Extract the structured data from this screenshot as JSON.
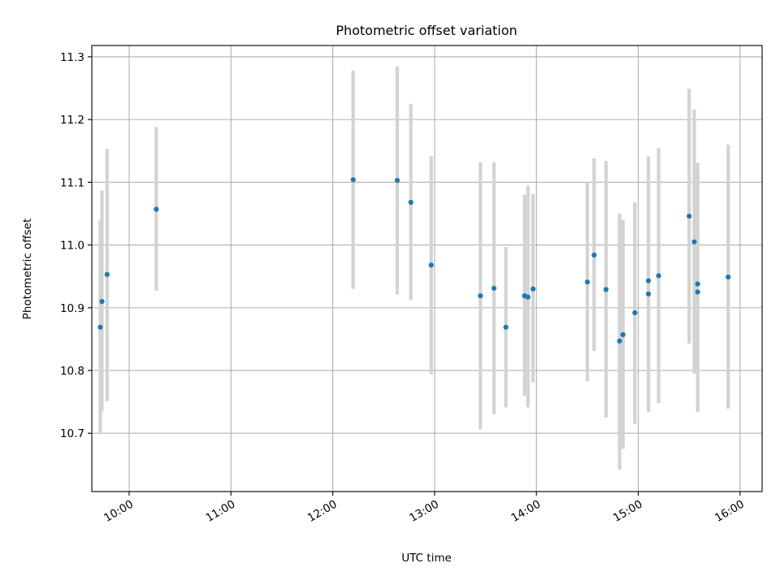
{
  "chart_data": {
    "type": "scatter",
    "title": "Photometric offset variation",
    "xlabel": "UTC time",
    "ylabel": "Photometric offset",
    "grid": true,
    "xlim": [
      "09:38",
      "16:13"
    ],
    "ylim": [
      10.607,
      11.318
    ],
    "x_ticks": [
      "10:00",
      "11:00",
      "12:00",
      "13:00",
      "14:00",
      "15:00",
      "16:00"
    ],
    "y_ticks": [
      "10.7",
      "10.8",
      "10.9",
      "11.0",
      "11.1",
      "11.2",
      "11.3"
    ],
    "points": [
      {
        "x": "09:43",
        "y": 10.869,
        "err_low": 10.699,
        "err_high": 11.04
      },
      {
        "x": "09:44",
        "y": 10.91,
        "err_low": 10.735,
        "err_high": 11.087
      },
      {
        "x": "09:47",
        "y": 10.953,
        "err_low": 10.751,
        "err_high": 11.153
      },
      {
        "x": "10:16",
        "y": 11.057,
        "err_low": 10.927,
        "err_high": 11.188
      },
      {
        "x": "12:12",
        "y": 11.104,
        "err_low": 10.93,
        "err_high": 11.278
      },
      {
        "x": "12:38",
        "y": 11.103,
        "err_low": 10.921,
        "err_high": 11.285
      },
      {
        "x": "12:46",
        "y": 11.068,
        "err_low": 10.912,
        "err_high": 11.225
      },
      {
        "x": "12:58",
        "y": 10.968,
        "err_low": 10.794,
        "err_high": 11.142
      },
      {
        "x": "13:27",
        "y": 10.919,
        "err_low": 10.706,
        "err_high": 11.132
      },
      {
        "x": "13:35",
        "y": 10.931,
        "err_low": 10.73,
        "err_high": 11.132
      },
      {
        "x": "13:42",
        "y": 10.869,
        "err_low": 10.741,
        "err_high": 10.997
      },
      {
        "x": "13:53",
        "y": 10.919,
        "err_low": 10.76,
        "err_high": 11.08
      },
      {
        "x": "13:55",
        "y": 10.917,
        "err_low": 10.741,
        "err_high": 11.095
      },
      {
        "x": "13:58",
        "y": 10.93,
        "err_low": 10.781,
        "err_high": 11.081
      },
      {
        "x": "14:30",
        "y": 10.941,
        "err_low": 10.783,
        "err_high": 11.1
      },
      {
        "x": "14:34",
        "y": 10.984,
        "err_low": 10.831,
        "err_high": 11.138
      },
      {
        "x": "14:41",
        "y": 10.929,
        "err_low": 10.725,
        "err_high": 11.134
      },
      {
        "x": "14:49",
        "y": 10.847,
        "err_low": 10.642,
        "err_high": 11.05
      },
      {
        "x": "14:51",
        "y": 10.857,
        "err_low": 10.675,
        "err_high": 11.04
      },
      {
        "x": "14:58",
        "y": 10.892,
        "err_low": 10.715,
        "err_high": 11.068
      },
      {
        "x": "15:06",
        "y": 10.943,
        "err_low": 10.745,
        "err_high": 11.141
      },
      {
        "x": "15:06",
        "y": 10.922,
        "err_low": 10.734,
        "err_high": 11.11
      },
      {
        "x": "15:12",
        "y": 10.951,
        "err_low": 10.748,
        "err_high": 11.154
      },
      {
        "x": "15:30",
        "y": 11.046,
        "err_low": 10.843,
        "err_high": 11.249
      },
      {
        "x": "15:33",
        "y": 11.005,
        "err_low": 10.795,
        "err_high": 11.216
      },
      {
        "x": "15:35",
        "y": 10.938,
        "err_low": 10.745,
        "err_high": 11.131
      },
      {
        "x": "15:35",
        "y": 10.925,
        "err_low": 10.734,
        "err_high": 11.118
      },
      {
        "x": "15:53",
        "y": 10.949,
        "err_low": 10.739,
        "err_high": 11.16
      }
    ]
  }
}
